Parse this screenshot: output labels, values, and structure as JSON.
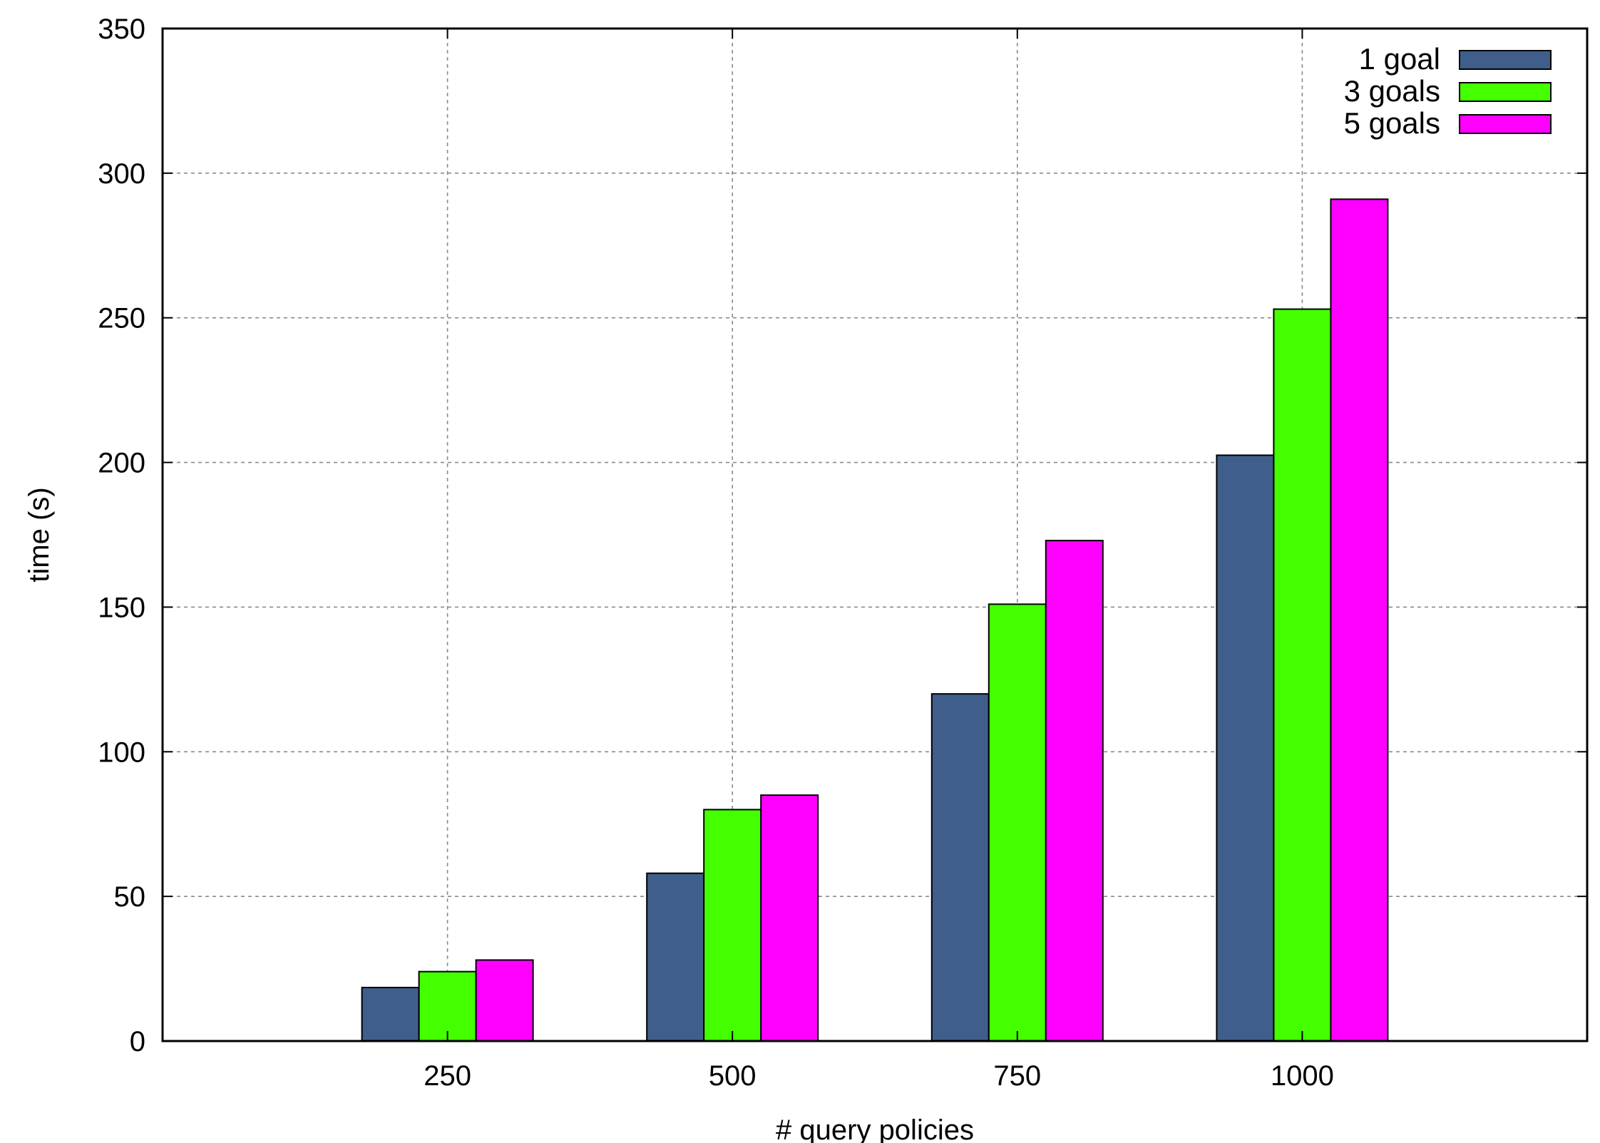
{
  "chart_data": {
    "type": "bar",
    "title": "",
    "xlabel": "# query policies",
    "ylabel": "time (s)",
    "categories": [
      "250",
      "500",
      "750",
      "1000"
    ],
    "series": [
      {
        "name": "1 goal",
        "color": "#3f5e8c",
        "values": [
          18.5,
          58,
          120,
          202.5
        ]
      },
      {
        "name": "3 goals",
        "color": "#44ff00",
        "values": [
          24,
          80,
          151,
          253
        ]
      },
      {
        "name": "5 goals",
        "color": "#ff00ff",
        "values": [
          28,
          85,
          173,
          291
        ]
      }
    ],
    "ylim": [
      0,
      350
    ],
    "yticks": [
      "0",
      "50",
      "100",
      "150",
      "200",
      "250",
      "300",
      "350"
    ],
    "grid": true,
    "legend_position": "top-right"
  }
}
